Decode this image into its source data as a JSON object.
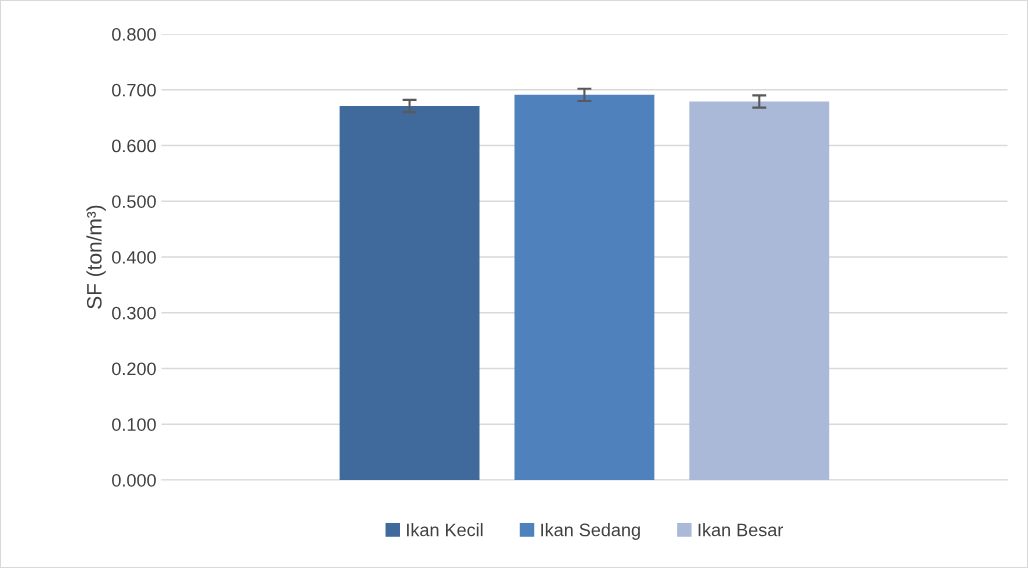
{
  "chart_data": {
    "type": "bar",
    "ylabel": "SF (ton/m³)",
    "categories": [
      null
    ],
    "series": [
      {
        "name": "Ikan Kecil",
        "color": "#406a9b",
        "values": [
          0.671
        ],
        "errors": [
          0.011
        ]
      },
      {
        "name": "Ikan Sedang",
        "color": "#4f81bd",
        "values": [
          0.691
        ],
        "errors": [
          0.011
        ]
      },
      {
        "name": "Ikan Besar",
        "color": "#aab9d7",
        "values": [
          0.679
        ],
        "errors": [
          0.011
        ]
      }
    ],
    "ylim": [
      0,
      0.8
    ],
    "yticks": [
      {
        "value": 0,
        "label": "0.000"
      },
      {
        "value": 0.1,
        "label": "0.100"
      },
      {
        "value": 0.2,
        "label": "0.200"
      },
      {
        "value": 0.3,
        "label": "0.300"
      },
      {
        "value": 0.4,
        "label": "0.400"
      },
      {
        "value": 0.5,
        "label": "0.500"
      },
      {
        "value": 0.6,
        "label": "0.600"
      },
      {
        "value": 0.7,
        "label": "0.700"
      },
      {
        "value": 0.8,
        "label": "0.800"
      }
    ],
    "grid": "y",
    "legend": "bottom"
  }
}
